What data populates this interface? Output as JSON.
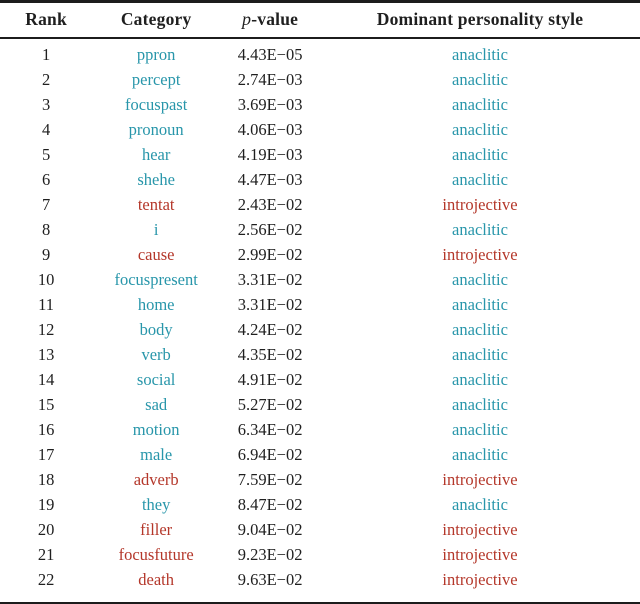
{
  "colors": {
    "text": "#1f1f1f",
    "rule": "#1c1c1c",
    "anaclitic": "#2896aa",
    "introjective": "#b4372a"
  },
  "table": {
    "headers": {
      "rank": "Rank",
      "category": "Category",
      "p_italic": "p",
      "p_rest": "-value",
      "style": "Dominant personality style"
    },
    "rows": [
      {
        "rank": "1",
        "category": "ppron",
        "p_value": "4.43E−05",
        "style": "anaclitic"
      },
      {
        "rank": "2",
        "category": "percept",
        "p_value": "2.74E−03",
        "style": "anaclitic"
      },
      {
        "rank": "3",
        "category": "focuspast",
        "p_value": "3.69E−03",
        "style": "anaclitic"
      },
      {
        "rank": "4",
        "category": "pronoun",
        "p_value": "4.06E−03",
        "style": "anaclitic"
      },
      {
        "rank": "5",
        "category": "hear",
        "p_value": "4.19E−03",
        "style": "anaclitic"
      },
      {
        "rank": "6",
        "category": "shehe",
        "p_value": "4.47E−03",
        "style": "anaclitic"
      },
      {
        "rank": "7",
        "category": "tentat",
        "p_value": "2.43E−02",
        "style": "introjective"
      },
      {
        "rank": "8",
        "category": "i",
        "p_value": "2.56E−02",
        "style": "anaclitic"
      },
      {
        "rank": "9",
        "category": "cause",
        "p_value": "2.99E−02",
        "style": "introjective"
      },
      {
        "rank": "10",
        "category": "focuspresent",
        "p_value": "3.31E−02",
        "style": "anaclitic"
      },
      {
        "rank": "11",
        "category": "home",
        "p_value": "3.31E−02",
        "style": "anaclitic"
      },
      {
        "rank": "12",
        "category": "body",
        "p_value": "4.24E−02",
        "style": "anaclitic"
      },
      {
        "rank": "13",
        "category": "verb",
        "p_value": "4.35E−02",
        "style": "anaclitic"
      },
      {
        "rank": "14",
        "category": "social",
        "p_value": "4.91E−02",
        "style": "anaclitic"
      },
      {
        "rank": "15",
        "category": "sad",
        "p_value": "5.27E−02",
        "style": "anaclitic"
      },
      {
        "rank": "16",
        "category": "motion",
        "p_value": "6.34E−02",
        "style": "anaclitic"
      },
      {
        "rank": "17",
        "category": "male",
        "p_value": "6.94E−02",
        "style": "anaclitic"
      },
      {
        "rank": "18",
        "category": "adverb",
        "p_value": "7.59E−02",
        "style": "introjective"
      },
      {
        "rank": "19",
        "category": "they",
        "p_value": "8.47E−02",
        "style": "anaclitic"
      },
      {
        "rank": "20",
        "category": "filler",
        "p_value": "9.04E−02",
        "style": "introjective"
      },
      {
        "rank": "21",
        "category": "focusfuture",
        "p_value": "9.23E−02",
        "style": "introjective"
      },
      {
        "rank": "22",
        "category": "death",
        "p_value": "9.63E−02",
        "style": "introjective"
      }
    ]
  }
}
